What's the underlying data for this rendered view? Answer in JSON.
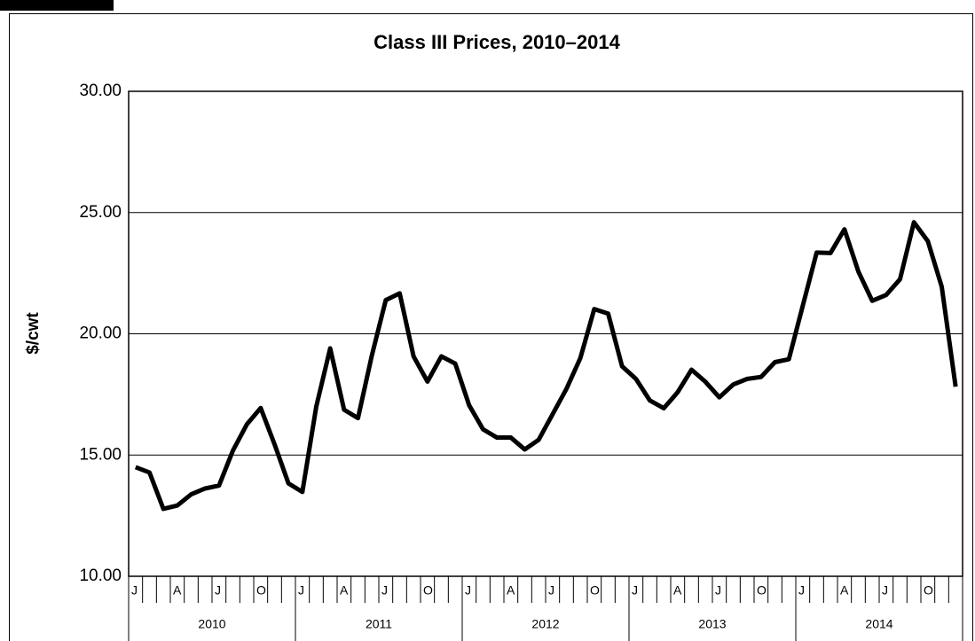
{
  "chart_data": {
    "type": "line",
    "title": "Class III Prices, 2010–2014",
    "ylabel": "$/cwt",
    "categories": [
      "J",
      null,
      null,
      "A",
      null,
      null,
      "J",
      null,
      null,
      "O",
      null,
      null,
      "J",
      null,
      null,
      "A",
      null,
      null,
      "J",
      null,
      null,
      "O",
      null,
      null,
      "J",
      null,
      null,
      "A",
      null,
      null,
      "J",
      null,
      null,
      "O",
      null,
      null,
      "J",
      null,
      null,
      "A",
      null,
      null,
      "J",
      null,
      null,
      "O",
      null,
      null,
      "J",
      null,
      null,
      "A",
      null,
      null,
      "J",
      null,
      null,
      "O",
      null,
      null
    ],
    "years": [
      "2010",
      "2011",
      "2012",
      "2013",
      "2014"
    ],
    "series": [
      {
        "name": "Class III",
        "color": "#000000",
        "values": [
          14.5,
          14.28,
          12.78,
          12.92,
          13.38,
          13.62,
          13.74,
          15.18,
          16.26,
          16.94,
          15.44,
          13.83,
          13.48,
          17.0,
          19.4,
          16.87,
          16.52,
          19.11,
          21.39,
          21.67,
          19.07,
          18.03,
          19.07,
          18.77,
          17.05,
          16.06,
          15.72,
          15.72,
          15.23,
          15.63,
          16.68,
          17.73,
          19.0,
          21.02,
          20.83,
          18.66,
          18.14,
          17.25,
          16.93,
          17.59,
          18.52,
          18.02,
          17.38,
          17.91,
          18.14,
          18.22,
          18.83,
          18.95,
          21.15,
          23.35,
          23.33,
          24.31,
          22.57,
          21.36,
          21.6,
          22.25,
          24.6,
          23.82,
          21.94,
          17.82
        ]
      }
    ],
    "ylim": [
      10,
      30
    ],
    "yticks": [
      {
        "value": 10,
        "label": "10.00"
      },
      {
        "value": 15,
        "label": "15.00"
      },
      {
        "value": 20,
        "label": "20.00"
      },
      {
        "value": 25,
        "label": "25.00"
      },
      {
        "value": 30,
        "label": "30.00"
      }
    ],
    "grid": true
  }
}
